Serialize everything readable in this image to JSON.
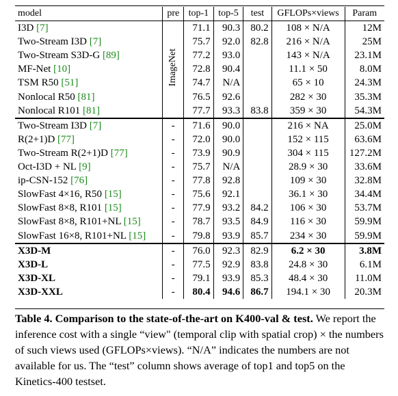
{
  "headers": {
    "model": "model",
    "pre": "pre",
    "top1": "top-1",
    "top5": "top-5",
    "test": "test",
    "gflops": "GFLOPs×views",
    "param": "Param"
  },
  "pretrain_label": "ImageNet",
  "group1": [
    {
      "name": "I3D ",
      "cite": "[7]",
      "top1": "71.1",
      "top5": "90.3",
      "test": "80.2",
      "gflops": "108 × N/A",
      "param": "12M"
    },
    {
      "name": "Two-Stream I3D ",
      "cite": "[7]",
      "top1": "75.7",
      "top5": "92.0",
      "test": "82.8",
      "gflops": "216 × N/A",
      "param": "25M"
    },
    {
      "name": "Two-Stream S3D-G ",
      "cite": "[89]",
      "top1": "77.2",
      "top5": "93.0",
      "test": "",
      "gflops": "143 × N/A",
      "param": "23.1M"
    },
    {
      "name": "MF-Net ",
      "cite": "[10]",
      "top1": "72.8",
      "top5": "90.4",
      "test": "",
      "gflops": "11.1 × 50",
      "param": "8.0M"
    },
    {
      "name": "TSM R50 ",
      "cite": "[51]",
      "top1": "74.7",
      "top5": "N/A",
      "test": "",
      "gflops": "65 × 10",
      "param": "24.3M"
    },
    {
      "name": "Nonlocal R50 ",
      "cite": "[81]",
      "top1": "76.5",
      "top5": "92.6",
      "test": "",
      "gflops": "282 × 30",
      "param": "35.3M"
    },
    {
      "name": "Nonlocal R101 ",
      "cite": "[81]",
      "top1": "77.7",
      "top5": "93.3",
      "test": "83.8",
      "gflops": "359 × 30",
      "param": "54.3M"
    }
  ],
  "group2": [
    {
      "name": "Two-Stream I3D ",
      "cite": "[7]",
      "pre": "-",
      "top1": "71.6",
      "top5": "90.0",
      "test": "",
      "gflops": "216 × NA",
      "param": "25.0M"
    },
    {
      "name": "R(2+1)D ",
      "cite": "[77]",
      "pre": "-",
      "top1": "72.0",
      "top5": "90.0",
      "test": "",
      "gflops": "152 × 115",
      "param": "63.6M"
    },
    {
      "name": "Two-Stream R(2+1)D ",
      "cite": "[77]",
      "pre": "-",
      "top1": "73.9",
      "top5": "90.9",
      "test": "",
      "gflops": "304 × 115",
      "param": "127.2M"
    },
    {
      "name": "Oct-I3D + NL ",
      "cite": "[9]",
      "pre": "-",
      "top1": "75.7",
      "top5": "N/A",
      "test": "",
      "gflops": "28.9 × 30",
      "param": "33.6M"
    },
    {
      "name": "ip-CSN-152 ",
      "cite": "[76]",
      "pre": "-",
      "top1": "77.8",
      "top5": "92.8",
      "test": "",
      "gflops": "109 × 30",
      "param": "32.8M"
    },
    {
      "name": "SlowFast 4×16, R50 ",
      "cite": "[15]",
      "pre": "-",
      "top1": "75.6",
      "top5": "92.1",
      "test": "",
      "gflops": "36.1 × 30",
      "param": "34.4M"
    },
    {
      "name": "SlowFast 8×8, R101 ",
      "cite": "[15]",
      "pre": "-",
      "top1": "77.9",
      "top5": "93.2",
      "test": "84.2",
      "gflops": "106 × 30",
      "param": "53.7M"
    },
    {
      "name": "SlowFast 8×8, R101+NL ",
      "cite": "[15]",
      "pre": "-",
      "top1": "78.7",
      "top5": "93.5",
      "test": "84.9",
      "gflops": "116 × 30",
      "param": "59.9M"
    },
    {
      "name": "SlowFast 16×8, R101+NL ",
      "cite": "[15]",
      "pre": "-",
      "top1": "79.8",
      "top5": "93.9",
      "test": "85.7",
      "gflops": "234 × 30",
      "param": "59.9M"
    }
  ],
  "group3": [
    {
      "name": "X3D-M",
      "pre": "-",
      "top1": "76.0",
      "top5": "92.3",
      "test": "82.9",
      "gflops": "6.2 × 30",
      "param": "3.8M"
    },
    {
      "name": "X3D-L",
      "pre": "-",
      "top1": "77.5",
      "top5": "92.9",
      "test": "83.8",
      "gflops": "24.8 × 30",
      "param": "6.1M"
    },
    {
      "name": "X3D-XL",
      "pre": "-",
      "top1": "79.1",
      "top5": "93.9",
      "test": "85.3",
      "gflops": "48.4 × 30",
      "param": "11.0M"
    },
    {
      "name": "X3D-XXL",
      "pre": "-",
      "top1": "80.4",
      "top5": "94.6",
      "test": "86.7",
      "gflops": "194.1 × 30",
      "param": "20.3M"
    }
  ],
  "caption": {
    "label": "Table 4.",
    "bold": "Comparison to the state-of-the-art on K400-val & test.",
    "body": "We report the inference cost with a single “view\" (temporal clip with spatial crop) × the numbers of such views used (GFLOPs×views). “N/A” indicates the numbers are not available for us. The “test” column shows average of top1 and top5 on the Kinetics-400 testset."
  }
}
